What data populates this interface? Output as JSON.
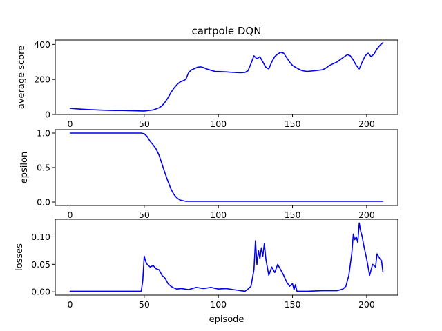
{
  "colors": {
    "line": "#0000ee"
  },
  "chart_data": [
    {
      "type": "line",
      "title": "cartpole DQN",
      "xlabel": "",
      "ylabel": "average score",
      "xlim": [
        -10,
        221
      ],
      "ylim": [
        0,
        425
      ],
      "xticks": [
        0,
        50,
        100,
        150,
        200
      ],
      "yticks": [
        0,
        200,
        400
      ],
      "xticklabels": [
        "0",
        "50",
        "100",
        "150",
        "200"
      ],
      "yticklabels": [
        "0",
        "200",
        "400"
      ],
      "series": [
        {
          "x": [
            0,
            3,
            6,
            10,
            15,
            20,
            25,
            30,
            35,
            40,
            45,
            48,
            50,
            52,
            54,
            56,
            58,
            60,
            62,
            64,
            66,
            68,
            70,
            72,
            74,
            76,
            78,
            80,
            82,
            84,
            86,
            88,
            90,
            92,
            94,
            96,
            98,
            100,
            105,
            110,
            115,
            118,
            120,
            122,
            124,
            126,
            128,
            130,
            132,
            134,
            136,
            138,
            140,
            142,
            144,
            146,
            148,
            150,
            152,
            154,
            156,
            158,
            160,
            165,
            170,
            172,
            175,
            178,
            180,
            183,
            185,
            187,
            189,
            191,
            193,
            195,
            197,
            199,
            201,
            203,
            205,
            207,
            209,
            211
          ],
          "y": [
            35,
            33,
            31,
            29,
            27,
            25,
            24,
            23,
            23,
            22,
            21,
            20,
            20,
            22,
            24,
            26,
            32,
            38,
            50,
            70,
            95,
            125,
            150,
            170,
            185,
            192,
            200,
            240,
            255,
            262,
            270,
            272,
            268,
            260,
            255,
            250,
            245,
            245,
            243,
            240,
            238,
            240,
            250,
            290,
            335,
            318,
            330,
            300,
            270,
            260,
            300,
            330,
            345,
            355,
            350,
            325,
            300,
            280,
            270,
            260,
            252,
            248,
            246,
            250,
            255,
            262,
            280,
            292,
            300,
            318,
            330,
            342,
            335,
            310,
            280,
            260,
            300,
            335,
            350,
            330,
            345,
            375,
            395,
            410
          ]
        }
      ]
    },
    {
      "type": "line",
      "title": "",
      "xlabel": "",
      "ylabel": "epsilon",
      "xlim": [
        -10,
        221
      ],
      "ylim": [
        -0.05,
        1.05
      ],
      "xticks": [
        0,
        50,
        100,
        150,
        200
      ],
      "yticks": [
        0.0,
        0.5,
        1.0
      ],
      "xticklabels": [
        "0",
        "50",
        "100",
        "150",
        "200"
      ],
      "yticklabels": [
        "0.0",
        "0.5",
        "1.0"
      ],
      "series": [
        {
          "x": [
            0,
            10,
            20,
            30,
            40,
            48,
            50,
            52,
            54,
            56,
            58,
            60,
            62,
            64,
            66,
            68,
            70,
            72,
            74,
            76,
            78,
            80,
            100,
            150,
            200,
            211
          ],
          "y": [
            1.0,
            1.0,
            1.0,
            1.0,
            1.0,
            1.0,
            0.99,
            0.95,
            0.88,
            0.83,
            0.77,
            0.68,
            0.55,
            0.42,
            0.3,
            0.19,
            0.11,
            0.06,
            0.03,
            0.02,
            0.01,
            0.01,
            0.01,
            0.01,
            0.01,
            0.01
          ]
        }
      ]
    },
    {
      "type": "line",
      "title": "",
      "xlabel": "episode",
      "ylabel": "losses",
      "xlim": [
        -10,
        221
      ],
      "ylim": [
        -0.006,
        0.132
      ],
      "xticks": [
        0,
        50,
        100,
        150,
        200
      ],
      "yticks": [
        0.0,
        0.05,
        0.1
      ],
      "xticklabels": [
        "0",
        "50",
        "100",
        "150",
        "200"
      ],
      "yticklabels": [
        "0.00",
        "0.05",
        "0.10"
      ],
      "series": [
        {
          "x": [
            0,
            10,
            20,
            30,
            40,
            48,
            49,
            50,
            51,
            52,
            54,
            56,
            58,
            60,
            62,
            64,
            66,
            68,
            70,
            72,
            75,
            80,
            85,
            90,
            95,
            100,
            105,
            110,
            115,
            118,
            120,
            122,
            124,
            125,
            126,
            127,
            128,
            129,
            130,
            131,
            132,
            134,
            136,
            138,
            140,
            142,
            144,
            146,
            148,
            150,
            151,
            152,
            153,
            160,
            170,
            180,
            184,
            186,
            188,
            190,
            191,
            192,
            193,
            194,
            195,
            196,
            197,
            198,
            200,
            202,
            204,
            206,
            207,
            209,
            210,
            211
          ],
          "y": [
            0.001,
            0.001,
            0.001,
            0.001,
            0.001,
            0.001,
            0.02,
            0.065,
            0.055,
            0.05,
            0.045,
            0.048,
            0.042,
            0.04,
            0.03,
            0.025,
            0.015,
            0.01,
            0.007,
            0.005,
            0.006,
            0.004,
            0.008,
            0.006,
            0.008,
            0.005,
            0.006,
            0.004,
            0.002,
            0.001,
            0.005,
            0.01,
            0.04,
            0.093,
            0.05,
            0.075,
            0.06,
            0.08,
            0.065,
            0.088,
            0.06,
            0.03,
            0.045,
            0.035,
            0.05,
            0.04,
            0.03,
            0.018,
            0.01,
            0.015,
            0.004,
            0.013,
            0.001,
            0.001,
            0.002,
            0.002,
            0.005,
            0.01,
            0.03,
            0.07,
            0.105,
            0.095,
            0.1,
            0.09,
            0.125,
            0.11,
            0.1,
            0.085,
            0.06,
            0.03,
            0.05,
            0.045,
            0.069,
            0.06,
            0.057,
            0.036
          ]
        }
      ]
    }
  ]
}
